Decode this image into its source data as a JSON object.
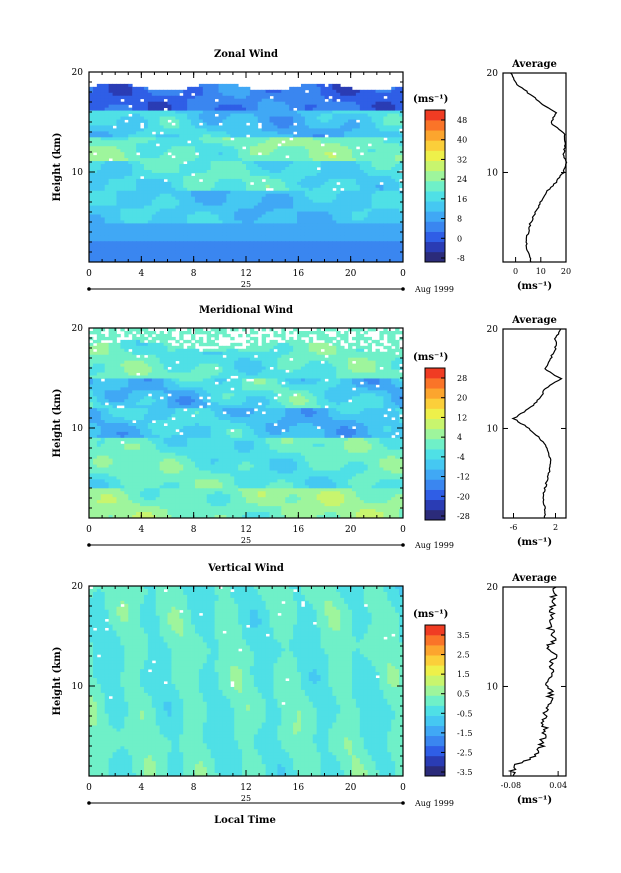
{
  "figure": {
    "xlabel": "Local Time",
    "date_label": "Aug 1999",
    "day_label": "25"
  },
  "chart_data": [
    {
      "type": "heatmap",
      "title": "Zonal Wind",
      "xlabel": "Local Time",
      "ylabel": "Height (km)",
      "x_ticks": [
        "0",
        "4",
        "8",
        "12",
        "16",
        "20",
        "0"
      ],
      "y_ticks": [
        "20",
        "10"
      ],
      "xlim": [
        0,
        24
      ],
      "ylim": [
        1,
        20
      ],
      "colorbar": {
        "unit": "(ms⁻¹)",
        "ticks": [
          "48",
          "40",
          "32",
          "24",
          "16",
          "8",
          "0",
          "-8"
        ],
        "range": [
          -8,
          52
        ]
      },
      "average": {
        "title": "Average",
        "unit": "(ms⁻¹)",
        "x_ticks": [
          "0",
          "10",
          "20"
        ],
        "xlim": [
          -5,
          20
        ],
        "y_ticks": [
          "20",
          "10"
        ],
        "profile": [
          [
            6,
            1
          ],
          [
            5,
            2
          ],
          [
            4,
            3
          ],
          [
            5,
            4
          ],
          [
            6,
            5
          ],
          [
            8,
            6
          ],
          [
            10,
            7
          ],
          [
            12,
            8
          ],
          [
            16,
            9
          ],
          [
            19,
            10
          ],
          [
            20,
            11
          ],
          [
            19,
            12
          ],
          [
            20,
            13
          ],
          [
            19,
            14
          ],
          [
            14,
            15
          ],
          [
            16,
            16
          ],
          [
            10,
            17
          ],
          [
            5,
            18
          ],
          [
            0,
            19
          ],
          [
            -2,
            20
          ]
        ]
      }
    },
    {
      "type": "heatmap",
      "title": "Meridional Wind",
      "xlabel": "Local Time",
      "ylabel": "Height (km)",
      "x_ticks": [
        "0",
        "4",
        "8",
        "12",
        "16",
        "20",
        "0"
      ],
      "y_ticks": [
        "20",
        "10"
      ],
      "xlim": [
        0,
        24
      ],
      "ylim": [
        1,
        20
      ],
      "colorbar": {
        "unit": "(ms⁻¹)",
        "ticks": [
          "28",
          "20",
          "12",
          "4",
          "-4",
          "-12",
          "-20",
          "-28"
        ],
        "range": [
          -28,
          32
        ]
      },
      "average": {
        "title": "Average",
        "unit": "(ms⁻¹)",
        "x_ticks": [
          "-6",
          "2"
        ],
        "xlim": [
          -8,
          4
        ],
        "y_ticks": [
          "20",
          "10"
        ],
        "profile": [
          [
            0,
            1
          ],
          [
            0,
            2
          ],
          [
            -0.5,
            3
          ],
          [
            0,
            4
          ],
          [
            0.5,
            5
          ],
          [
            1,
            6
          ],
          [
            1,
            7
          ],
          [
            0.5,
            8
          ],
          [
            -1,
            9
          ],
          [
            -3,
            10
          ],
          [
            -6,
            11
          ],
          [
            -3,
            12
          ],
          [
            -1,
            13
          ],
          [
            0,
            14
          ],
          [
            3,
            15
          ],
          [
            0,
            16
          ],
          [
            1,
            17
          ],
          [
            2,
            18
          ],
          [
            2,
            19
          ],
          [
            3,
            20
          ]
        ]
      }
    },
    {
      "type": "heatmap",
      "title": "Vertical Wind",
      "xlabel": "Local Time",
      "ylabel": "Height (km)",
      "x_ticks": [
        "0",
        "4",
        "8",
        "12",
        "16",
        "20",
        "0"
      ],
      "y_ticks": [
        "20",
        "10"
      ],
      "xlim": [
        0,
        24
      ],
      "ylim": [
        1,
        20
      ],
      "colorbar": {
        "unit": "(ms⁻¹)",
        "ticks": [
          "3.5",
          "2.5",
          "1.5",
          "0.5",
          "-0.5",
          "-1.5",
          "-2.5",
          "-3.5"
        ],
        "range": [
          -3.5,
          3.5
        ]
      },
      "average": {
        "title": "Average",
        "unit": "(ms⁻¹)",
        "x_ticks": [
          "-0.08",
          "0.04"
        ],
        "xlim": [
          -0.1,
          0.06
        ],
        "y_ticks": [
          "20",
          "10"
        ],
        "profile": [
          [
            -0.08,
            1
          ],
          [
            -0.07,
            2
          ],
          [
            -0.02,
            3
          ],
          [
            0,
            4
          ],
          [
            0,
            5
          ],
          [
            0.005,
            6
          ],
          [
            0.01,
            7
          ],
          [
            0.015,
            8
          ],
          [
            0.02,
            9
          ],
          [
            0.015,
            10
          ],
          [
            0.025,
            11
          ],
          [
            0.02,
            12
          ],
          [
            0.03,
            13
          ],
          [
            0.015,
            14
          ],
          [
            0.03,
            15
          ],
          [
            0.02,
            16
          ],
          [
            0.03,
            17
          ],
          [
            0.025,
            18
          ],
          [
            0.03,
            19
          ],
          [
            0.035,
            20
          ]
        ]
      }
    }
  ]
}
